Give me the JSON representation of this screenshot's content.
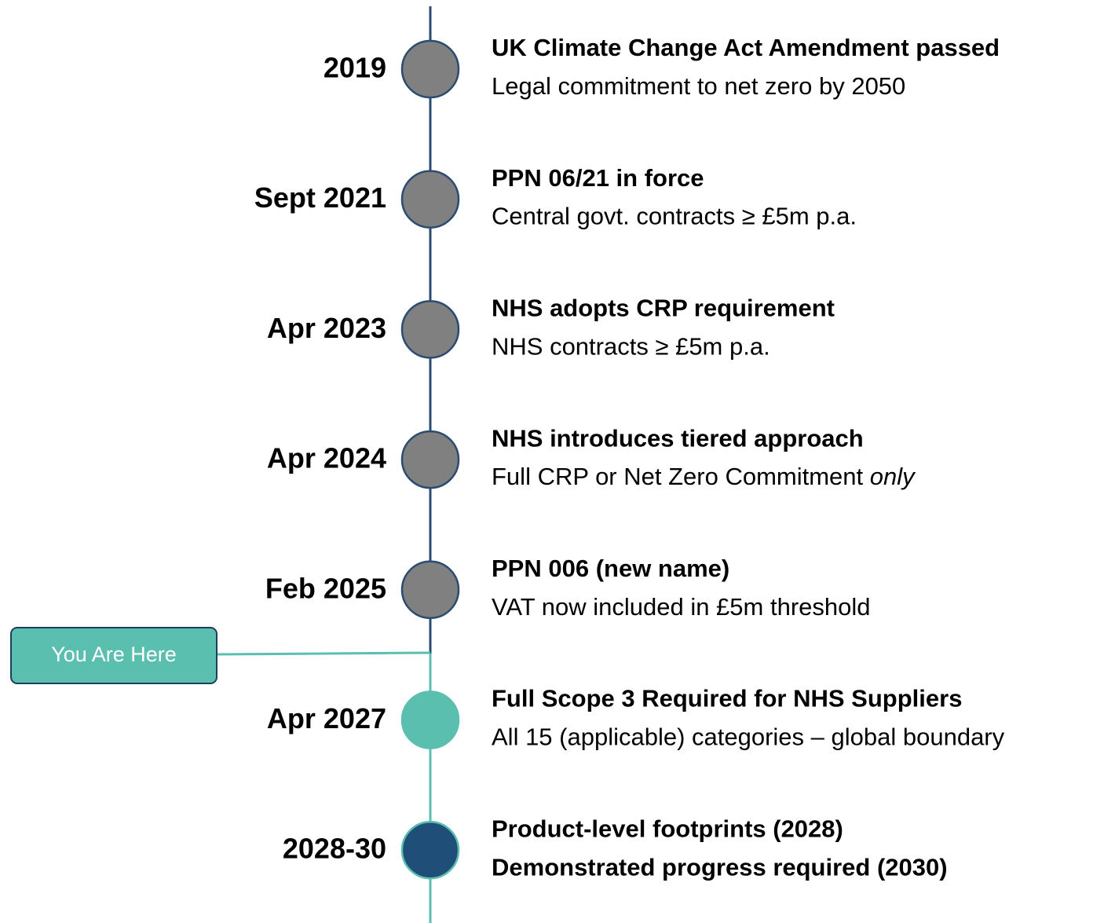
{
  "timeline": {
    "marker": "You Are Here",
    "events": [
      {
        "date": "2019",
        "title": "UK Climate Change Act Amendment passed",
        "description": "Legal commitment to net zero by 2050"
      },
      {
        "date": "Sept 2021",
        "title": "PPN 06/21 in force",
        "description": "Central govt. contracts ≥ £5m p.a."
      },
      {
        "date": "Apr 2023",
        "title": "NHS adopts CRP requirement",
        "description": "NHS contracts ≥ £5m p.a."
      },
      {
        "date": "Apr 2024",
        "title": "NHS introduces tiered approach",
        "description": "Full CRP or Net Zero Commitment ",
        "description_emphasis": "only"
      },
      {
        "date": "Feb 2025",
        "title": "PPN 006 (new name)",
        "description": "VAT now included in £5m threshold"
      },
      {
        "date": "Apr 2027",
        "title": "Full Scope 3 Required for NHS Suppliers",
        "description": "All 15 (applicable) categories – global boundary"
      },
      {
        "date": "2028-30",
        "title": "Product-level footprints (2028)",
        "title_continued": "Demonstrated progress required (2030)"
      }
    ]
  }
}
